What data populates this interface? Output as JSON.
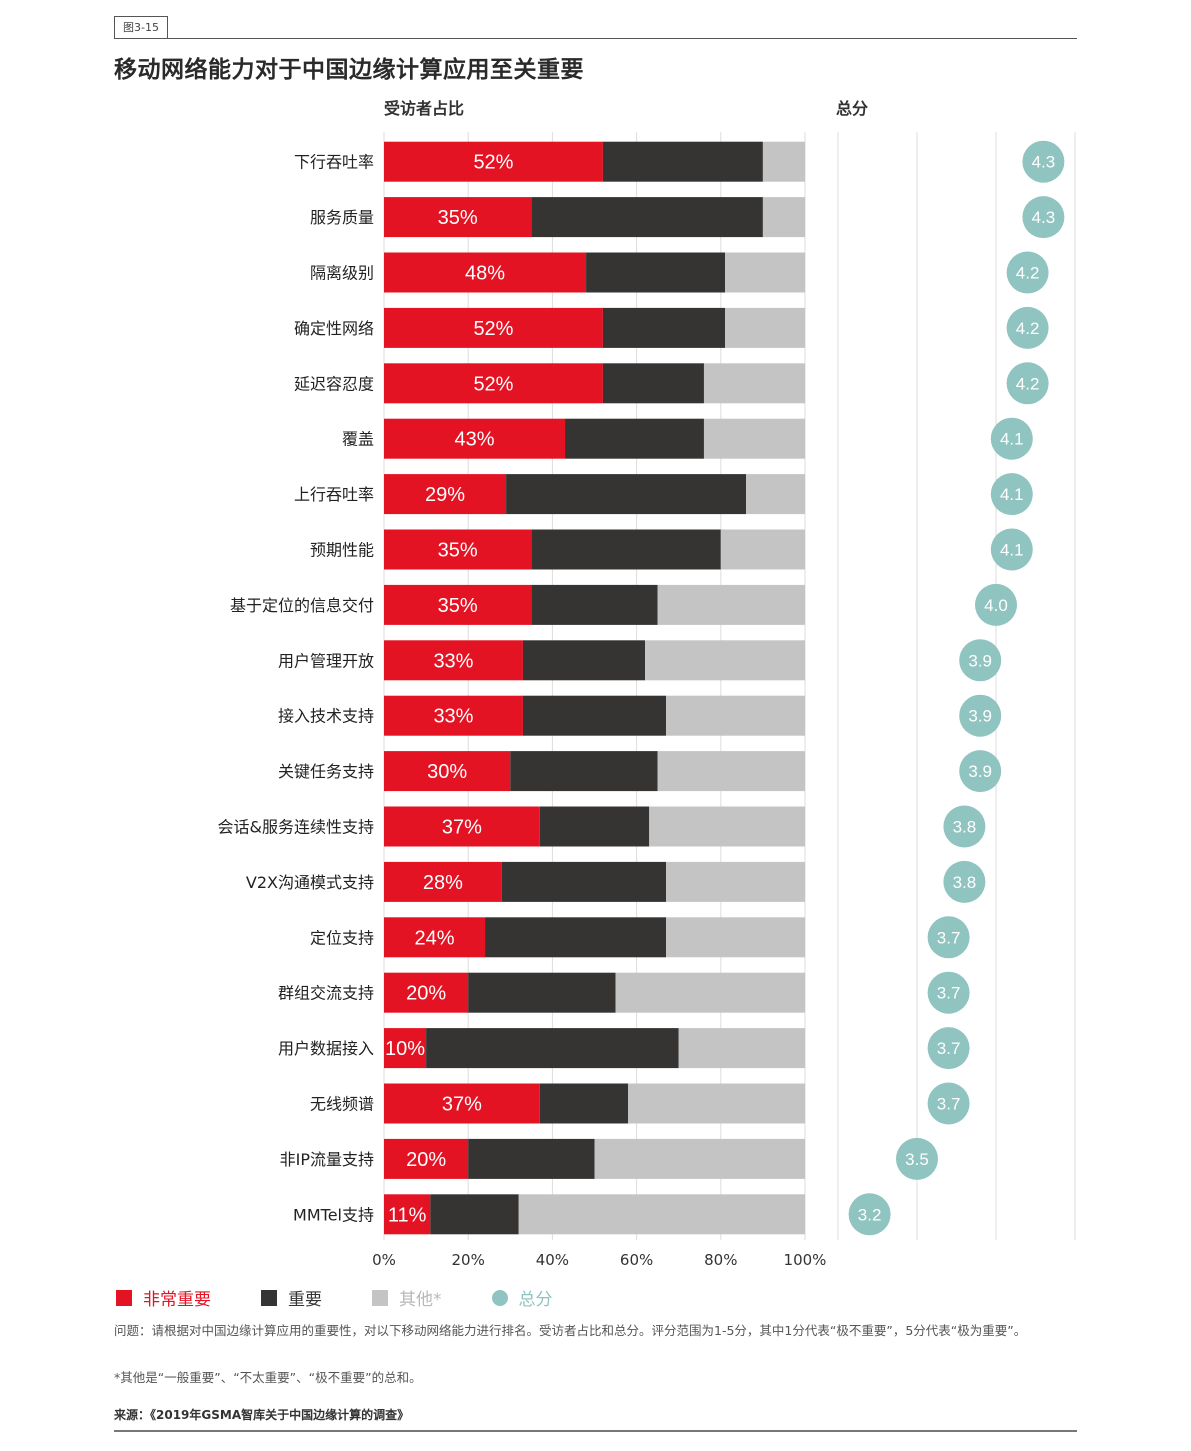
{
  "figure_tag": "图3-15",
  "title": "移动网络能力对于中国边缘计算应用至关重要",
  "subtitle_left": "受访者占比",
  "subtitle_right": "总分",
  "colors": {
    "very_important": "#e31324",
    "important": "#353432",
    "other": "#c4c4c4",
    "score": "#8fc4c0",
    "gridline": "#dddddd"
  },
  "chart_data": [
    {
      "type": "bar",
      "orientation": "horizontal",
      "stacked": true,
      "title": "受访者占比",
      "xlabel": "",
      "ylabel": "",
      "xlim": [
        0,
        100
      ],
      "x_ticks": [
        "0%",
        "20%",
        "40%",
        "60%",
        "80%",
        "100%"
      ],
      "grid": true,
      "categories": [
        "下行吞吐率",
        "服务质量",
        "隔离级别",
        "确定性网络",
        "延迟容忍度",
        "覆盖",
        "上行吞吐率",
        "预期性能",
        "基于定位的信息交付",
        "用户管理开放",
        "接入技术支持",
        "关键任务支持",
        "会话&服务连续性支持",
        "V2X沟通模式支持",
        "定位支持",
        "群组交流支持",
        "用户数据接入",
        "无线频谱",
        "非IP流量支持",
        "MMTel支持"
      ],
      "series": [
        {
          "name": "非常重要",
          "values": [
            52,
            35,
            48,
            52,
            52,
            43,
            29,
            35,
            35,
            33,
            33,
            30,
            37,
            28,
            24,
            20,
            10,
            37,
            20,
            11
          ]
        },
        {
          "name": "重要",
          "values": [
            38,
            55,
            33,
            29,
            24,
            33,
            57,
            45,
            30,
            29,
            34,
            35,
            26,
            39,
            43,
            35,
            60,
            21,
            30,
            21
          ]
        },
        {
          "name": "其他*",
          "values": [
            10,
            10,
            19,
            19,
            24,
            24,
            14,
            20,
            35,
            38,
            33,
            35,
            37,
            33,
            33,
            45,
            30,
            42,
            50,
            68
          ]
        }
      ],
      "data_labels": [
        "52%",
        "35%",
        "48%",
        "52%",
        "52%",
        "43%",
        "29%",
        "35%",
        "35%",
        "33%",
        "33%",
        "30%",
        "37%",
        "28%",
        "24%",
        "20%",
        "10%",
        "37%",
        "20%",
        "11%"
      ],
      "legend_position": "bottom-left"
    },
    {
      "type": "scatter",
      "title": "总分",
      "categories": [
        "下行吞吐率",
        "服务质量",
        "隔离级别",
        "确定性网络",
        "延迟容忍度",
        "覆盖",
        "上行吞吐率",
        "预期性能",
        "基于定位的信息交付",
        "用户管理开放",
        "接入技术支持",
        "关键任务支持",
        "会话&服务连续性支持",
        "V2X沟通模式支持",
        "定位支持",
        "群组交流支持",
        "用户数据接入",
        "无线频谱",
        "非IP流量支持",
        "MMTel支持"
      ],
      "values": [
        4.3,
        4.3,
        4.2,
        4.2,
        4.2,
        4.1,
        4.1,
        4.1,
        4.0,
        3.9,
        3.9,
        3.9,
        3.8,
        3.8,
        3.7,
        3.7,
        3.7,
        3.7,
        3.5,
        3.2
      ],
      "labels": [
        "4.3",
        "4.3",
        "4.2",
        "4.2",
        "4.2",
        "4.1",
        "4.1",
        "4.1",
        "4.0",
        "3.9",
        "3.9",
        "3.9",
        "3.8",
        "3.8",
        "3.7",
        "3.7",
        "3.7",
        "3.7",
        "3.5",
        "3.2"
      ],
      "xlim": [
        3.0,
        4.5
      ],
      "gridlines_at": [
        3.0,
        3.5,
        4.0,
        4.5
      ],
      "grid": true
    }
  ],
  "legend": [
    {
      "label": "非常重要",
      "color": "#e31324",
      "shape": "square",
      "text_color": "#e31324"
    },
    {
      "label": "重要",
      "color": "#353432",
      "shape": "square",
      "text_color": "#353432"
    },
    {
      "label": "其他*",
      "color": "#c4c4c4",
      "shape": "square",
      "text_color": "#b8b8b8"
    },
    {
      "label": "总分",
      "color": "#8fc4c0",
      "shape": "circle",
      "text_color": "#8fc4c0"
    }
  ],
  "notes": {
    "question": "问题：请根据对中国边缘计算应用的重要性，对以下移动网络能力进行排名。受访者占比和总分。评分范围为1-5分，其中1分代表“极不重要”，5分代表“极为重要”。",
    "footnote": "*其他是“一般重要”、“不太重要”、“极不重要”的总和。",
    "source": "来源：《2019年GSMA智库关于中国边缘计算的调查》"
  }
}
